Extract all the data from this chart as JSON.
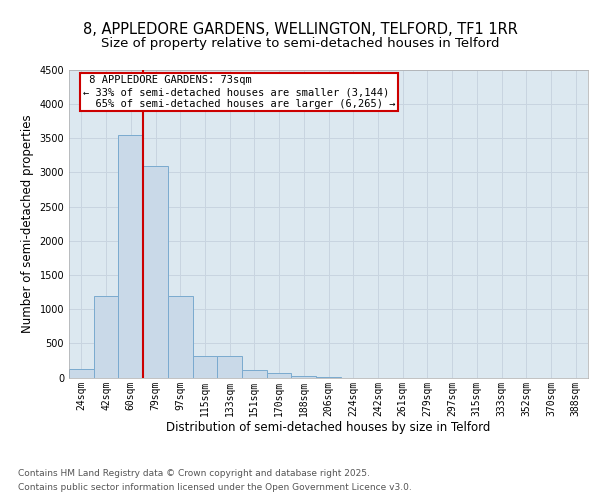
{
  "title_line1": "8, APPLEDORE GARDENS, WELLINGTON, TELFORD, TF1 1RR",
  "title_line2": "Size of property relative to semi-detached houses in Telford",
  "xlabel": "Distribution of semi-detached houses by size in Telford",
  "ylabel": "Number of semi-detached properties",
  "bins": [
    "24sqm",
    "42sqm",
    "60sqm",
    "79sqm",
    "97sqm",
    "115sqm",
    "133sqm",
    "151sqm",
    "170sqm",
    "188sqm",
    "206sqm",
    "224sqm",
    "242sqm",
    "261sqm",
    "279sqm",
    "297sqm",
    "315sqm",
    "333sqm",
    "352sqm",
    "370sqm",
    "388sqm"
  ],
  "values": [
    120,
    1200,
    3550,
    3100,
    1200,
    310,
    310,
    110,
    60,
    20,
    5,
    0,
    0,
    0,
    0,
    0,
    0,
    0,
    0,
    0,
    0
  ],
  "bar_color": "#c9d9e8",
  "bar_edge_color": "#7aaacf",
  "property_line_label": "8 APPLEDORE GARDENS: 73sqm",
  "smaller_pct": "33%",
  "smaller_n": "3,144",
  "larger_pct": "65%",
  "larger_n": "6,265",
  "line_color": "#cc0000",
  "annotation_box_color": "#cc0000",
  "ylim": [
    0,
    4500
  ],
  "yticks": [
    0,
    500,
    1000,
    1500,
    2000,
    2500,
    3000,
    3500,
    4000,
    4500
  ],
  "grid_color": "#c8d4e0",
  "bg_color": "#dce8f0",
  "footer_line1": "Contains HM Land Registry data © Crown copyright and database right 2025.",
  "footer_line2": "Contains public sector information licensed under the Open Government Licence v3.0.",
  "title_fontsize": 10.5,
  "subtitle_fontsize": 9.5,
  "tick_fontsize": 7.0,
  "label_fontsize": 8.5,
  "footer_fontsize": 6.5,
  "annotation_fontsize": 7.5,
  "line_x_index": 2.5
}
